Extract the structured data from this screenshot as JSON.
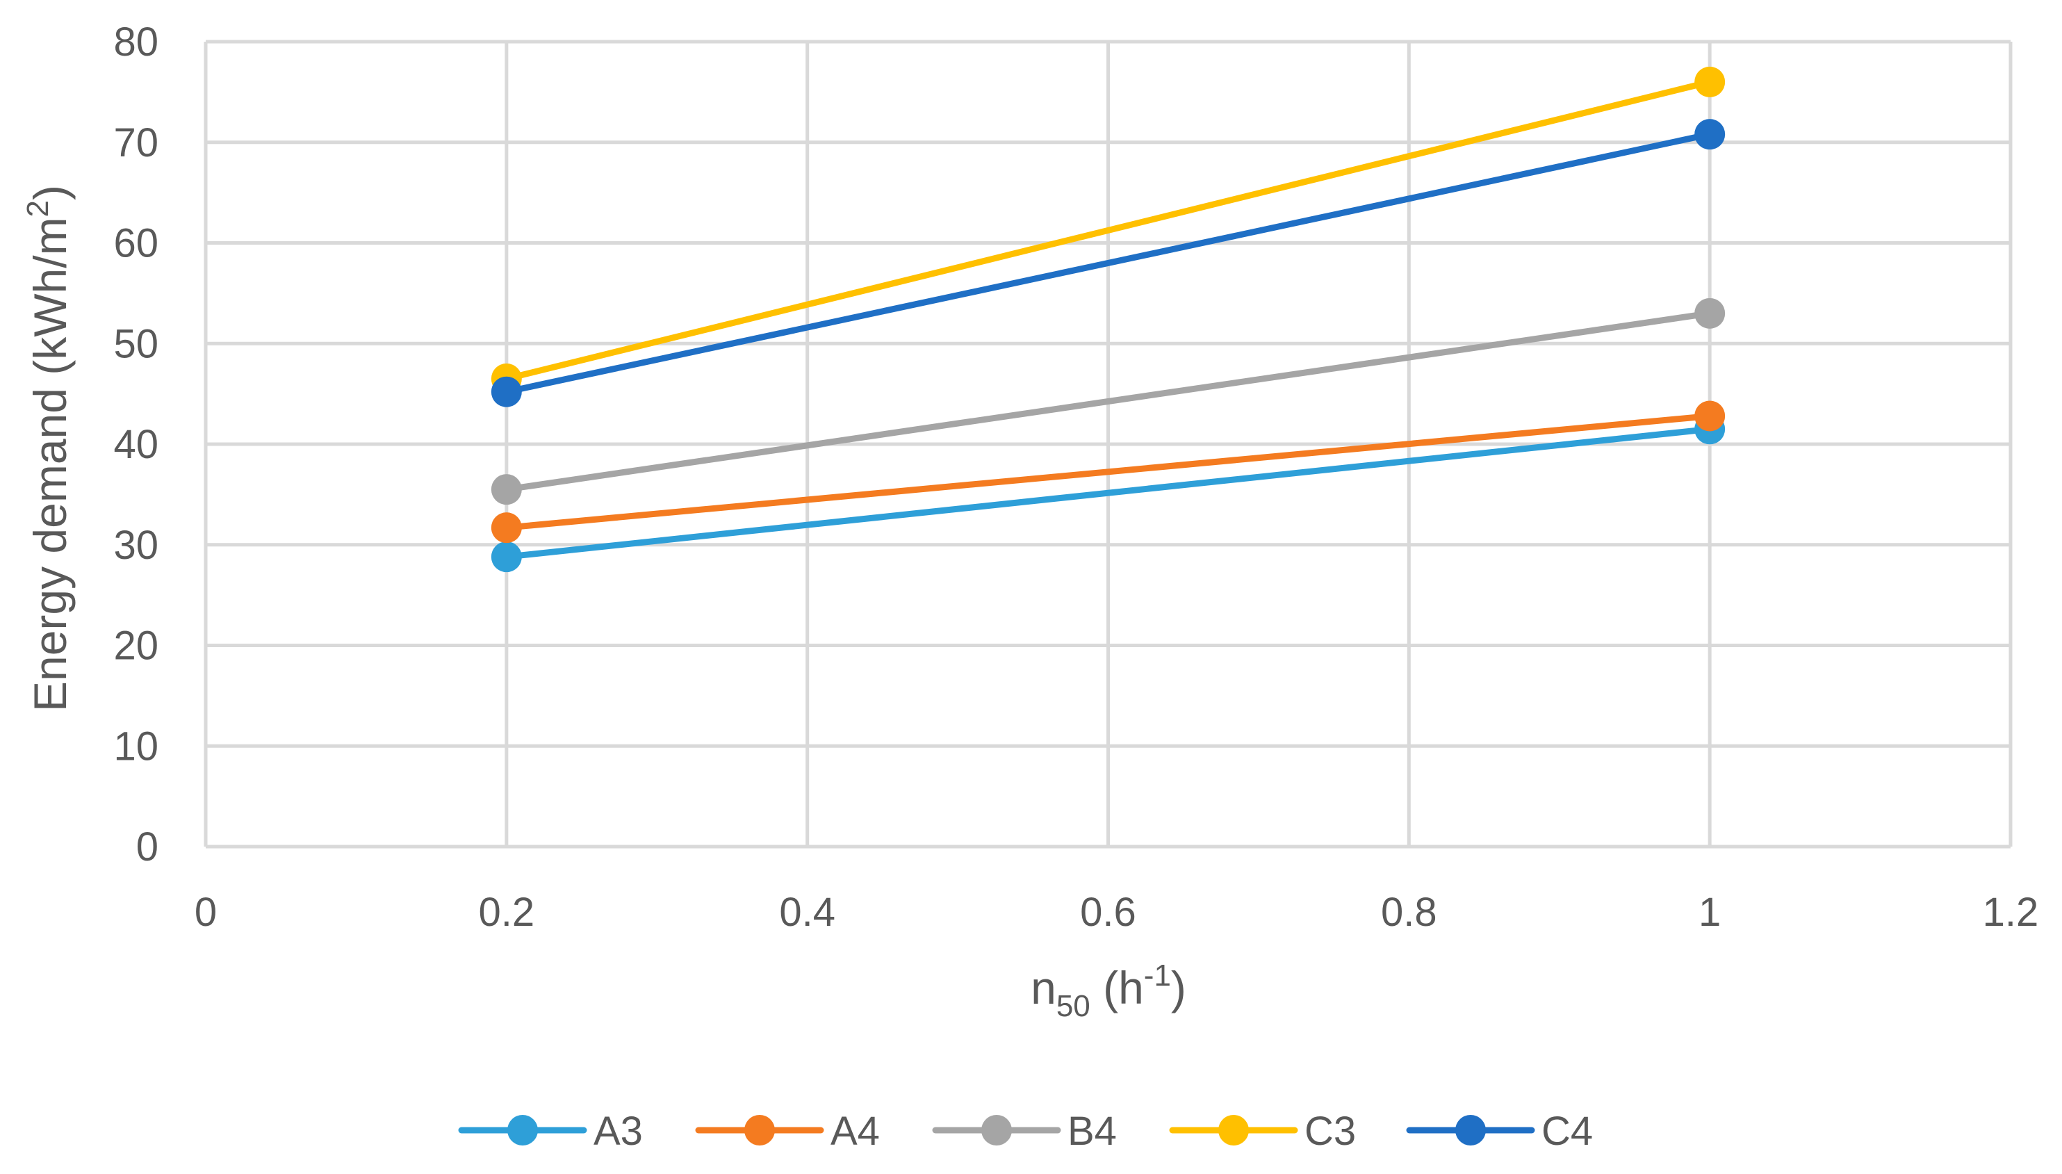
{
  "chart_data": {
    "type": "line",
    "x_axis": {
      "title_main": "n",
      "title_sub": "50",
      "title_open": " (h",
      "title_sup": "-1",
      "title_close": ")",
      "range": [
        0,
        1.2
      ],
      "ticks": [
        0,
        0.2,
        0.4,
        0.6,
        0.8,
        1,
        1.2
      ],
      "tick_labels": [
        "0",
        "0.2",
        "0.4",
        "0.6",
        "0.8",
        "1",
        "1.2"
      ]
    },
    "y_axis": {
      "title_main": "Energy demand (kWh/m",
      "title_sup": "2",
      "title_close": ")",
      "range": [
        0,
        80
      ],
      "ticks": [
        0,
        10,
        20,
        30,
        40,
        50,
        60,
        70,
        80
      ],
      "tick_labels": [
        "0",
        "10",
        "20",
        "30",
        "40",
        "50",
        "60",
        "70",
        "80"
      ]
    },
    "grid": true,
    "legend_position": "bottom",
    "series": [
      {
        "name": "A3",
        "color": "#2E9FD8",
        "x": [
          0.2,
          1
        ],
        "y": [
          28.8,
          41.5
        ]
      },
      {
        "name": "A4",
        "color": "#F47B20",
        "x": [
          0.2,
          1
        ],
        "y": [
          31.7,
          42.8
        ]
      },
      {
        "name": "B4",
        "color": "#A5A5A5",
        "x": [
          0.2,
          1
        ],
        "y": [
          35.5,
          53.0
        ]
      },
      {
        "name": "C3",
        "color": "#FFC000",
        "x": [
          0.2,
          1
        ],
        "y": [
          46.5,
          76.0
        ]
      },
      {
        "name": "C4",
        "color": "#1F6FC5",
        "x": [
          0.2,
          1
        ],
        "y": [
          45.2,
          70.8
        ]
      }
    ]
  }
}
